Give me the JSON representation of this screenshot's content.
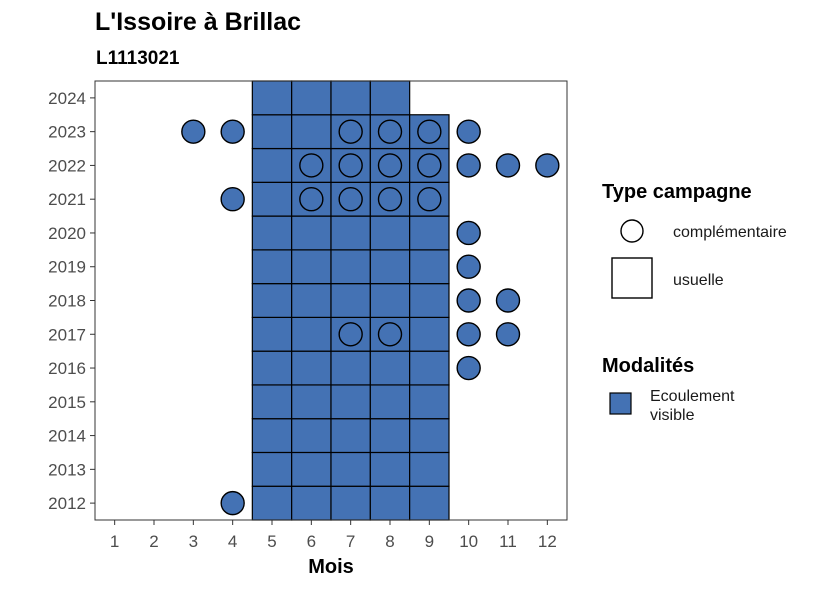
{
  "chart_data": {
    "type": "scatter",
    "title": "L'Issoire à Brillac",
    "subtitle": "L1113021",
    "xlabel": "Mois",
    "ylabel": "",
    "x_ticks": [
      "1",
      "2",
      "3",
      "4",
      "5",
      "6",
      "7",
      "8",
      "9",
      "10",
      "11",
      "12"
    ],
    "y_ticks": [
      "2012",
      "2013",
      "2014",
      "2015",
      "2016",
      "2017",
      "2018",
      "2019",
      "2020",
      "2021",
      "2022",
      "2023",
      "2024"
    ],
    "xlim": [
      0.5,
      12.5
    ],
    "ylim": [
      2011.5,
      2024.5
    ],
    "fill_color": "#4472B4",
    "legend_shape": {
      "title": "Type campagne",
      "entries": [
        "complémentaire",
        "usuelle"
      ]
    },
    "legend_fill": {
      "title": "Modalités",
      "entries": [
        "Ecoulement visible"
      ]
    },
    "usuelle": [
      {
        "month": 5,
        "year": 2012
      },
      {
        "month": 6,
        "year": 2012
      },
      {
        "month": 7,
        "year": 2012
      },
      {
        "month": 8,
        "year": 2012
      },
      {
        "month": 9,
        "year": 2012
      },
      {
        "month": 5,
        "year": 2013
      },
      {
        "month": 6,
        "year": 2013
      },
      {
        "month": 7,
        "year": 2013
      },
      {
        "month": 8,
        "year": 2013
      },
      {
        "month": 9,
        "year": 2013
      },
      {
        "month": 5,
        "year": 2014
      },
      {
        "month": 6,
        "year": 2014
      },
      {
        "month": 7,
        "year": 2014
      },
      {
        "month": 8,
        "year": 2014
      },
      {
        "month": 9,
        "year": 2014
      },
      {
        "month": 5,
        "year": 2015
      },
      {
        "month": 6,
        "year": 2015
      },
      {
        "month": 7,
        "year": 2015
      },
      {
        "month": 8,
        "year": 2015
      },
      {
        "month": 9,
        "year": 2015
      },
      {
        "month": 5,
        "year": 2016
      },
      {
        "month": 6,
        "year": 2016
      },
      {
        "month": 7,
        "year": 2016
      },
      {
        "month": 8,
        "year": 2016
      },
      {
        "month": 9,
        "year": 2016
      },
      {
        "month": 5,
        "year": 2017
      },
      {
        "month": 6,
        "year": 2017
      },
      {
        "month": 7,
        "year": 2017
      },
      {
        "month": 8,
        "year": 2017
      },
      {
        "month": 9,
        "year": 2017
      },
      {
        "month": 5,
        "year": 2018
      },
      {
        "month": 6,
        "year": 2018
      },
      {
        "month": 7,
        "year": 2018
      },
      {
        "month": 8,
        "year": 2018
      },
      {
        "month": 9,
        "year": 2018
      },
      {
        "month": 5,
        "year": 2019
      },
      {
        "month": 6,
        "year": 2019
      },
      {
        "month": 7,
        "year": 2019
      },
      {
        "month": 8,
        "year": 2019
      },
      {
        "month": 9,
        "year": 2019
      },
      {
        "month": 5,
        "year": 2020
      },
      {
        "month": 6,
        "year": 2020
      },
      {
        "month": 7,
        "year": 2020
      },
      {
        "month": 8,
        "year": 2020
      },
      {
        "month": 9,
        "year": 2020
      },
      {
        "month": 5,
        "year": 2021
      },
      {
        "month": 6,
        "year": 2021
      },
      {
        "month": 7,
        "year": 2021
      },
      {
        "month": 8,
        "year": 2021
      },
      {
        "month": 9,
        "year": 2021
      },
      {
        "month": 5,
        "year": 2022
      },
      {
        "month": 6,
        "year": 2022
      },
      {
        "month": 7,
        "year": 2022
      },
      {
        "month": 8,
        "year": 2022
      },
      {
        "month": 9,
        "year": 2022
      },
      {
        "month": 5,
        "year": 2023
      },
      {
        "month": 6,
        "year": 2023
      },
      {
        "month": 7,
        "year": 2023
      },
      {
        "month": 8,
        "year": 2023
      },
      {
        "month": 9,
        "year": 2023
      },
      {
        "month": 5,
        "year": 2024
      },
      {
        "month": 6,
        "year": 2024
      },
      {
        "month": 7,
        "year": 2024
      },
      {
        "month": 8,
        "year": 2024
      }
    ],
    "complementaire": [
      {
        "month": 4,
        "year": 2012
      },
      {
        "month": 10,
        "year": 2016
      },
      {
        "month": 7,
        "year": 2017
      },
      {
        "month": 8,
        "year": 2017
      },
      {
        "month": 10,
        "year": 2017
      },
      {
        "month": 11,
        "year": 2017
      },
      {
        "month": 10,
        "year": 2018
      },
      {
        "month": 11,
        "year": 2018
      },
      {
        "month": 10,
        "year": 2019
      },
      {
        "month": 10,
        "year": 2020
      },
      {
        "month": 4,
        "year": 2021
      },
      {
        "month": 6,
        "year": 2021
      },
      {
        "month": 7,
        "year": 2021
      },
      {
        "month": 8,
        "year": 2021
      },
      {
        "month": 9,
        "year": 2021
      },
      {
        "month": 6,
        "year": 2022
      },
      {
        "month": 7,
        "year": 2022
      },
      {
        "month": 8,
        "year": 2022
      },
      {
        "month": 9,
        "year": 2022
      },
      {
        "month": 10,
        "year": 2022
      },
      {
        "month": 11,
        "year": 2022
      },
      {
        "month": 12,
        "year": 2022
      },
      {
        "month": 3,
        "year": 2023
      },
      {
        "month": 4,
        "year": 2023
      },
      {
        "month": 7,
        "year": 2023
      },
      {
        "month": 8,
        "year": 2023
      },
      {
        "month": 9,
        "year": 2023
      },
      {
        "month": 10,
        "year": 2023
      }
    ]
  }
}
